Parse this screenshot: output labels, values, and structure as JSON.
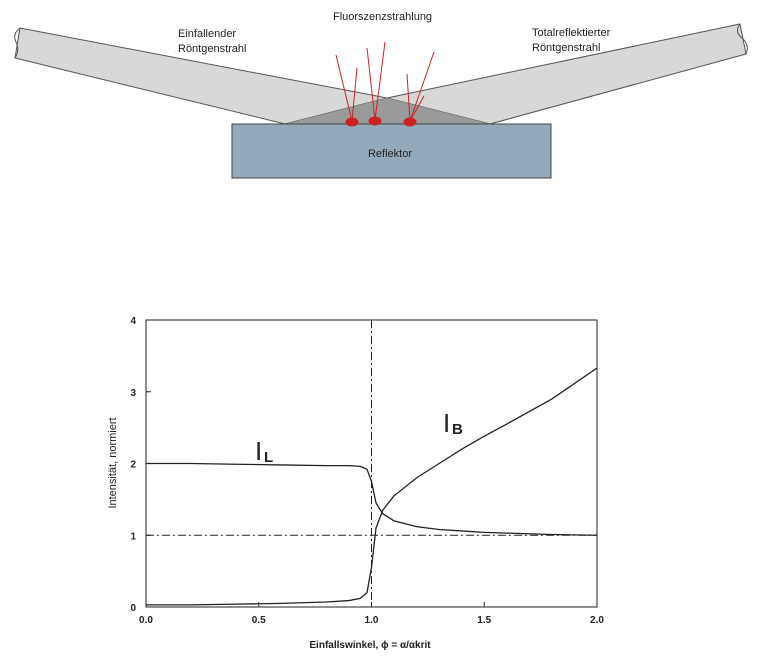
{
  "diagram": {
    "incident_label": [
      "Einfallender",
      "Röntgenstrahl"
    ],
    "fluorescence_label": "Fluorszenzstrahlung",
    "reflected_label": [
      "Totalreflektierter",
      "Röntgenstrahl"
    ],
    "reflector_label": "Reflektor"
  },
  "chart_data": {
    "type": "line",
    "x_label": "Einfallswinkel, ϕ = α/αkrit",
    "y_label": "Intensität, normiert",
    "x": [
      0,
      0.2,
      0.4,
      0.6,
      0.8,
      0.9,
      0.95,
      0.98,
      1.0,
      1.02,
      1.05,
      1.1,
      1.2,
      1.3,
      1.4,
      1.5,
      1.6,
      1.8,
      2.0
    ],
    "series": [
      {
        "color": "#222222",
        "values": [
          2.0,
          2.0,
          1.99,
          1.98,
          1.97,
          1.97,
          1.96,
          1.92,
          1.75,
          1.45,
          1.3,
          1.2,
          1.12,
          1.08,
          1.06,
          1.04,
          1.03,
          1.01,
          1.0
        ]
      },
      {
        "color": "#222222",
        "values": [
          0.03,
          0.03,
          0.04,
          0.05,
          0.07,
          0.09,
          0.12,
          0.2,
          0.55,
          1.1,
          1.35,
          1.55,
          1.8,
          2.0,
          2.2,
          2.38,
          2.55,
          2.9,
          3.33
        ]
      }
    ],
    "annotations": [
      {
        "text": "I",
        "subscript": "L"
      },
      {
        "text": "I",
        "subscript": "B"
      }
    ],
    "vlines": [
      1.0
    ],
    "hlines": [
      1.0
    ],
    "xlim": [
      0,
      2
    ],
    "ylim": [
      0,
      4
    ],
    "xticks": [
      {
        "value": 0,
        "label": "0.0"
      },
      {
        "value": 0.5,
        "label": "0.5"
      },
      {
        "value": 1,
        "label": "1.0"
      },
      {
        "value": 1.5,
        "label": "1.5"
      },
      {
        "value": 2,
        "label": "2.0"
      }
    ],
    "yticks": [
      0,
      1,
      2,
      3,
      4
    ]
  }
}
